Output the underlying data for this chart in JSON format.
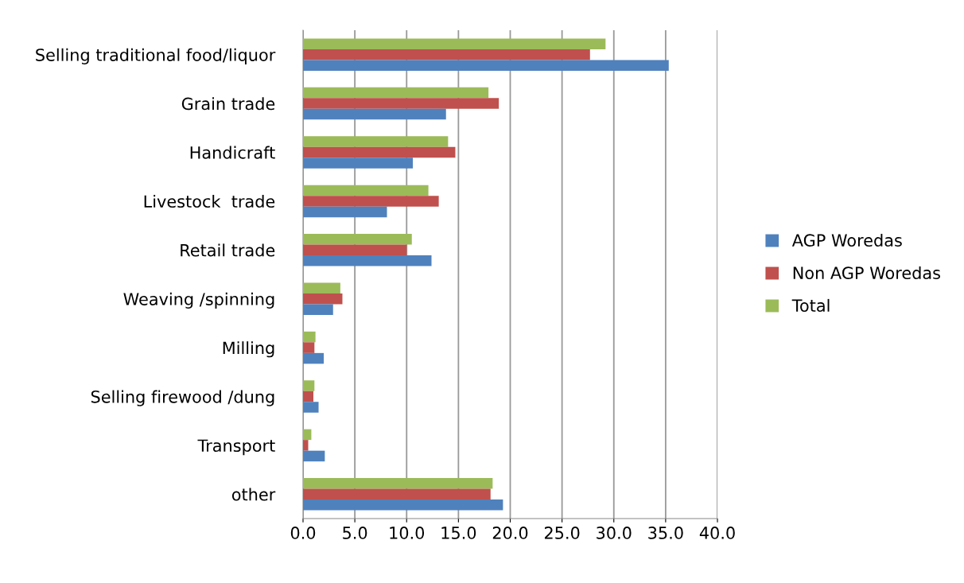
{
  "chart_data": {
    "type": "bar",
    "orientation": "horizontal",
    "categories": [
      "Selling traditional food/liquor",
      "Grain trade",
      "Handicraft",
      "Livestock  trade",
      "Retail trade",
      "Weaving /spinning",
      "Milling",
      "Selling firewood /dung",
      "Transport",
      "other"
    ],
    "series": [
      {
        "name": "Total",
        "color": "#9bbb59",
        "values": [
          29.2,
          17.9,
          14.0,
          12.1,
          10.5,
          3.6,
          1.2,
          1.1,
          0.8,
          18.3
        ]
      },
      {
        "name": "Non AGP Woredas",
        "color": "#c0504d",
        "values": [
          27.7,
          18.9,
          14.7,
          13.1,
          10.0,
          3.8,
          1.1,
          1.0,
          0.5,
          18.1
        ]
      },
      {
        "name": "AGP Woredas",
        "color": "#4f81bd",
        "values": [
          35.3,
          13.8,
          10.6,
          8.1,
          12.4,
          2.9,
          2.0,
          1.5,
          2.1,
          19.3
        ]
      }
    ],
    "xlim": [
      0,
      40
    ],
    "xticks": [
      {
        "value": 0,
        "label": "0.0"
      },
      {
        "value": 5,
        "label": "5.0"
      },
      {
        "value": 10,
        "label": "10.0"
      },
      {
        "value": 15,
        "label": "15.0"
      },
      {
        "value": 20,
        "label": "20.0"
      },
      {
        "value": 25,
        "label": "25.0"
      },
      {
        "value": 30,
        "label": "30.0"
      },
      {
        "value": 35,
        "label": "35.0"
      },
      {
        "value": 40,
        "label": "40.0"
      }
    ],
    "grid": "x",
    "legend": "right"
  }
}
